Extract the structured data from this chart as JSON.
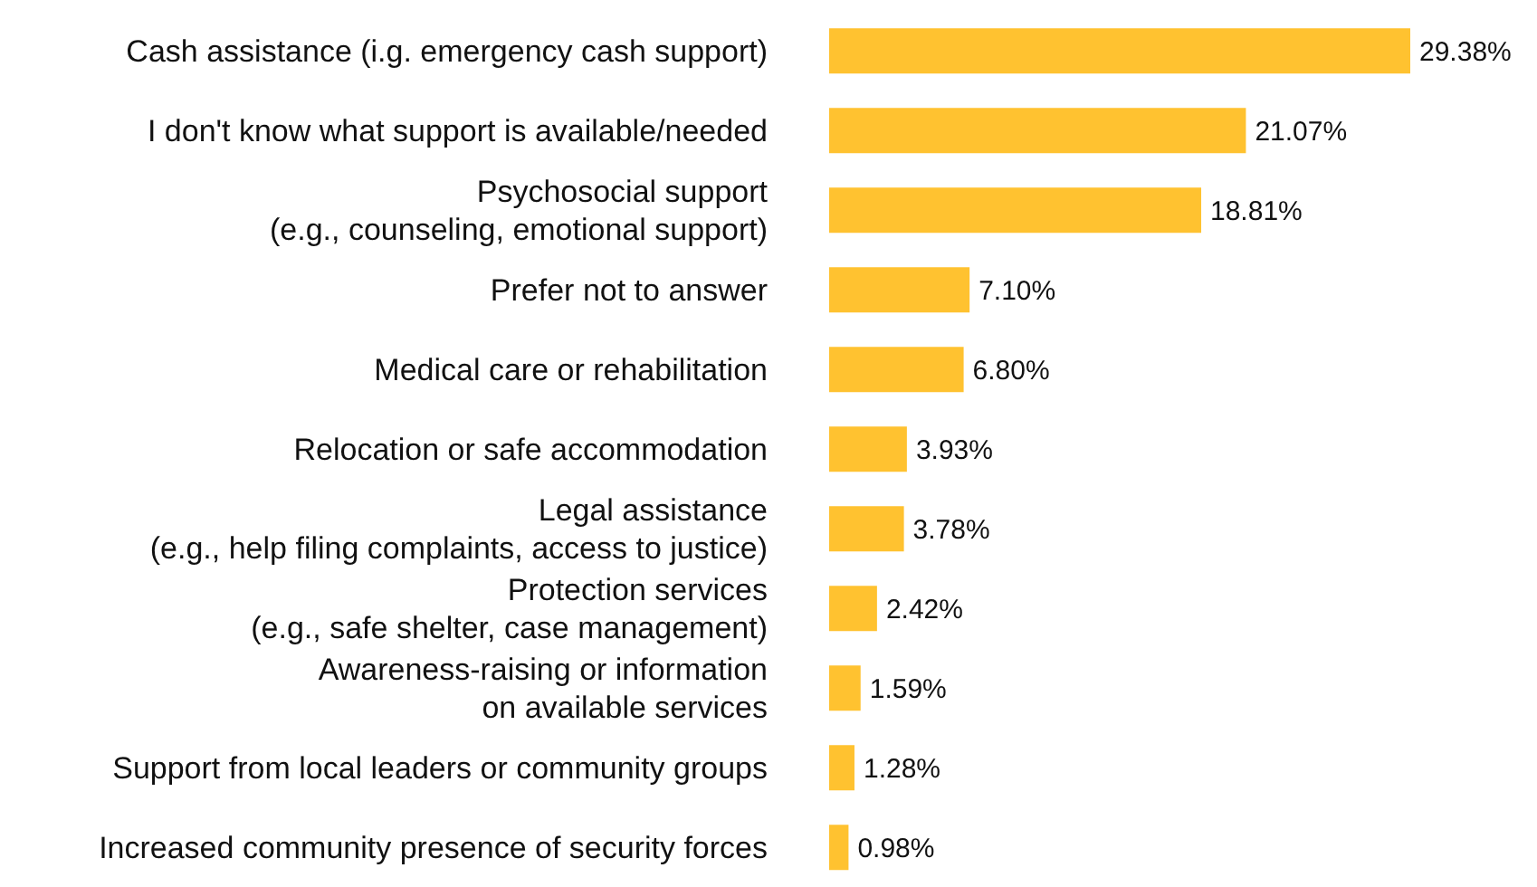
{
  "chart_data": {
    "type": "bar",
    "orientation": "horizontal",
    "categories": [
      "Cash assistance (i.g. emergency cash support)",
      "I don't know what support is available/needed",
      "Psychosocial support\n(e.g., counseling, emotional support)",
      "Prefer not to answer",
      "Medical care or rehabilitation",
      "Relocation or safe accommodation",
      "Legal assistance\n(e.g., help filing complaints, access to justice)",
      "Protection services\n(e.g., safe shelter, case management)",
      "Awareness-raising or information\non available services",
      "Support from local leaders or community groups",
      "Increased community presence of security forces"
    ],
    "values": [
      29.38,
      21.07,
      18.81,
      7.1,
      6.8,
      3.93,
      3.78,
      2.42,
      1.59,
      1.28,
      0.98
    ],
    "value_labels": [
      "29.38%",
      "21.07%",
      "18.81%",
      "7.10%",
      "6.80%",
      "3.93%",
      "3.78%",
      "2.42%",
      "1.59%",
      "1.28%",
      "0.98%"
    ],
    "color": "#ffc230"
  }
}
